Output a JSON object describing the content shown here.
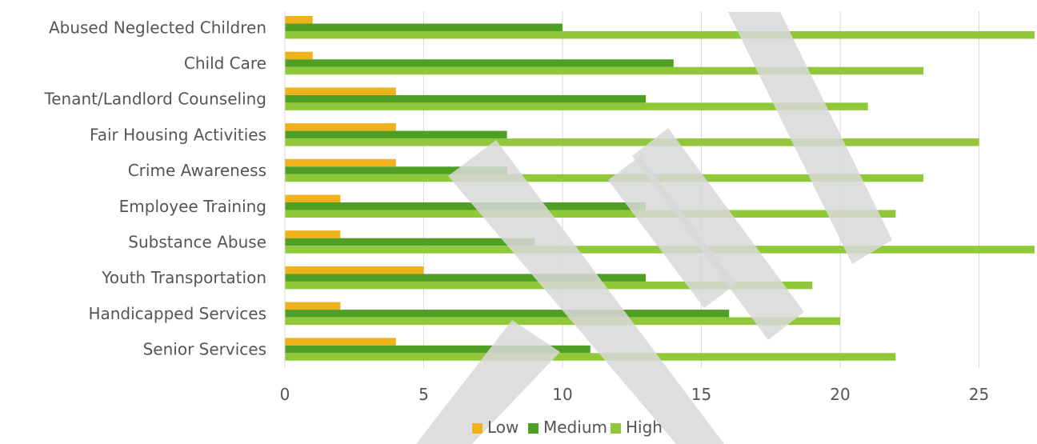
{
  "chart_data": {
    "type": "bar",
    "orientation": "horizontal",
    "categories": [
      "Abused Neglected Children",
      "Child Care",
      "Tenant/Landlord Counseling",
      "Fair Housing Activities",
      "Crime Awareness",
      "Employee Training",
      "Substance Abuse",
      "Youth Transportation",
      "Handicapped Services",
      "Senior Services"
    ],
    "series": [
      {
        "name": "Low",
        "color": "#f0b21c",
        "values": [
          1,
          1,
          4,
          4,
          4,
          2,
          2,
          5,
          2,
          4
        ]
      },
      {
        "name": "Medium",
        "color": "#4f9f25",
        "values": [
          10,
          14,
          13,
          8,
          8,
          13,
          9,
          13,
          16,
          11
        ]
      },
      {
        "name": "High",
        "color": "#90c83a",
        "values": [
          27,
          23,
          21,
          25,
          23,
          22,
          27,
          19,
          20,
          22
        ]
      }
    ],
    "xlim": [
      0,
      27
    ],
    "xticks": [
      "0",
      "5",
      "10",
      "15",
      "20",
      "25"
    ],
    "title": "",
    "xlabel": "",
    "ylabel": "",
    "grid": "vertical",
    "legend_position": "bottom",
    "watermark_color": "#d8d8d8"
  }
}
